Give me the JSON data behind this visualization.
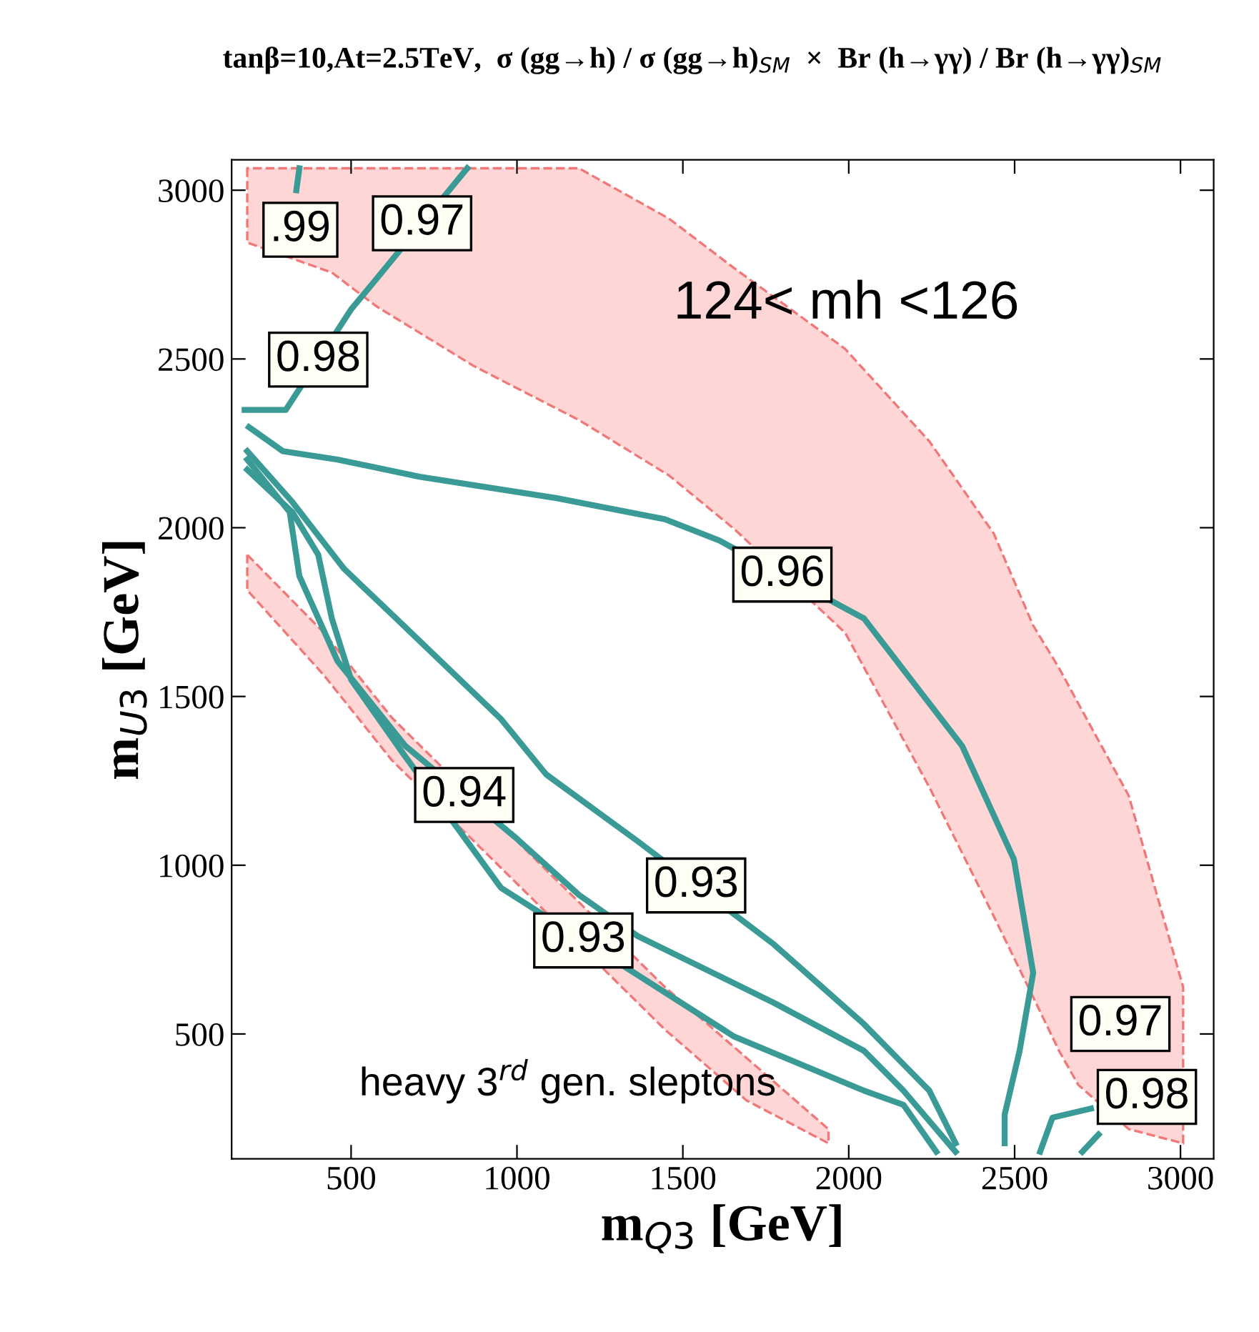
{
  "chart_data": {
    "type": "line",
    "title": "tanβ=10,At=2.5TeV,  σ (gg→h) / σ (gg→h)$_{SM}$  ×  Br (h→γγ) / Br (h→γγ)$_{SM}$",
    "xlabel": "m$_{Q3}$ [GeV]",
    "ylabel": "m$_{U3}$ [GeV]",
    "xlim": [
      140,
      3100
    ],
    "ylim": [
      130,
      3090
    ],
    "xticks": [
      500,
      1000,
      1500,
      2000,
      2500,
      3000
    ],
    "yticks": [
      500,
      1000,
      1500,
      2000,
      2500,
      3000
    ],
    "series": [
      {
        "type": "area",
        "color": "#ffd6d6",
        "line_style": "dashed",
        "x": [
          187,
          442,
          578,
          870,
          1187,
          1458,
          1655,
          1989,
          2243,
          2437,
          2556,
          2634,
          2692,
          2844,
          3008
        ],
        "values": [
          null,
          null,
          null,
          null,
          null,
          null,
          null,
          null,
          null,
          null,
          null,
          null,
          null,
          null,
          null
        ],
        "upper": [
          3065,
          3065,
          3065,
          3065,
          3065,
          2916,
          2769,
          2530,
          2256,
          1983,
          1710,
          1584,
          1479,
          1206,
          639
        ],
        "lower": [
          2845,
          2756,
          2655,
          2479,
          2319,
          2155,
          1996,
          1689,
          1231,
          849,
          609,
          450,
          349,
          218,
          176
        ]
      },
      {
        "type": "area",
        "color": "#ffd6d6",
        "line_style": "dashed",
        "x": [
          187,
          418,
          623,
          1446,
          1692,
          1939
        ],
        "values": [
          null,
          null,
          null,
          null,
          null,
          null
        ],
        "upper": [
          1920,
          1689,
          1437,
          639,
          429,
          218
        ],
        "lower": [
          1815,
          1563,
          1311,
          513,
          303,
          176
        ]
      },
      {
        "color": "#3a9a96",
        "x": [
          192,
          294,
          459,
          706,
          1117,
          1446,
          1610,
          2046,
          2342,
          2498,
          2556,
          2515,
          2470,
          2470
        ],
        "values": [
          2298,
          2227,
          2202,
          2151,
          2088,
          2025,
          1962,
          1731,
          1353,
          1017,
          681,
          450,
          261,
          176
        ]
      },
      {
        "color": "#3a9a96",
        "x": [
          187,
          323,
          479,
          636,
          952,
          1088,
          1364,
          1775,
          2046,
          2243,
          2322
        ],
        "values": [
          2227,
          2076,
          1878,
          1731,
          1433,
          1269,
          1071,
          765,
          529,
          332,
          176
        ]
      },
      {
        "color": "#3a9a96",
        "x": [
          187,
          323,
          401,
          442,
          500,
          656,
          952,
          1655,
          2046,
          2165,
          2264
        ],
        "values": [
          2172,
          2046,
          1920,
          1731,
          1550,
          1332,
          933,
          492,
          332,
          290,
          151
        ]
      },
      {
        "color": "#3a9a96",
        "x": [
          187,
          315,
          344,
          459,
          664,
          998,
          1187,
          1364,
          1775,
          2046,
          2165,
          2322
        ],
        "values": [
          2202,
          2046,
          1857,
          1605,
          1353,
          1080,
          912,
          790,
          592,
          450,
          332,
          151
        ]
      },
      {
        "color": "#3a9a96",
        "x": [
          179,
          303,
          500,
          578,
          850
        ],
        "values": [
          2349,
          2349,
          2647,
          2739,
          3065
        ]
      },
      {
        "color": "#3a9a96",
        "x": [
          335,
          344
        ],
        "values": [
          3000,
          3065
        ]
      },
      {
        "color": "#3a9a96",
        "x": [
          2577,
          2614,
          2730
        ],
        "values": [
          151,
          252,
          279
        ]
      },
      {
        "color": "#3a9a96",
        "x": [
          2704,
          2753
        ],
        "values": [
          151,
          202
        ]
      }
    ],
    "annotations": [
      ".99",
      {
        "text": "0.97",
        "x": 714,
        "y": 2902
      },
      {
        "text": "0.98",
        "x": 401,
        "y": 2498
      },
      {
        "text": "0.96",
        "x": 1800,
        "y": 1861
      },
      {
        "text": "0.94",
        "x": 841,
        "y": 1208
      },
      {
        "text": "0.93",
        "x": 1540,
        "y": 940
      },
      {
        "text": "0.93",
        "x": 1200,
        "y": 777
      },
      "0.97",
      "0.98",
      "124< mh <126",
      "heavy 3$^{rd}$ gen. sleptons"
    ]
  }
}
